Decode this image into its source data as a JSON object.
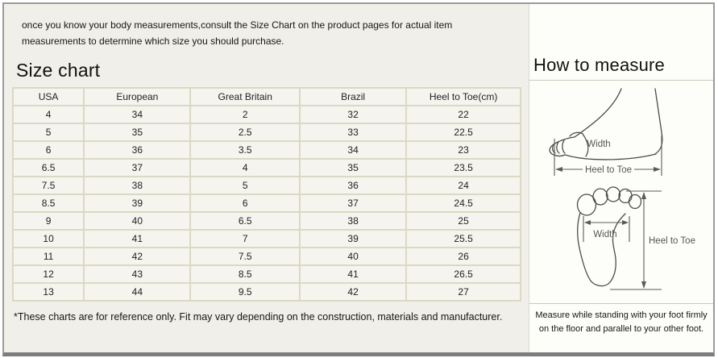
{
  "intro_text": "once you know your body measurements,consult the Size Chart on the product pages for actual item measurements to determine which size you should purchase.",
  "size_chart": {
    "title": "Size chart",
    "columns": [
      "USA",
      "European",
      "Great Britain",
      "Brazil",
      "Heel to Toe(cm)"
    ],
    "column_widths_percent": [
      14,
      21,
      21.5,
      21,
      22.5
    ],
    "rows": [
      [
        "4",
        "34",
        "2",
        "32",
        "22"
      ],
      [
        "5",
        "35",
        "2.5",
        "33",
        "22.5"
      ],
      [
        "6",
        "36",
        "3.5",
        "34",
        "23"
      ],
      [
        "6.5",
        "37",
        "4",
        "35",
        "23.5"
      ],
      [
        "7.5",
        "38",
        "5",
        "36",
        "24"
      ],
      [
        "8.5",
        "39",
        "6",
        "37",
        "24.5"
      ],
      [
        "9",
        "40",
        "6.5",
        "38",
        "25"
      ],
      [
        "10",
        "41",
        "7",
        "39",
        "25.5"
      ],
      [
        "11",
        "42",
        "7.5",
        "40",
        "26"
      ],
      [
        "12",
        "43",
        "8.5",
        "41",
        "26.5"
      ],
      [
        "13",
        "44",
        "9.5",
        "42",
        "27"
      ]
    ],
    "footnote": "*These charts are for reference only. Fit may vary depending on the construction, materials and manufacturer."
  },
  "how_to_measure": {
    "title": "How to measure",
    "instruction": "Measure while standing with your foot firmly on the floor and parallel to your other foot.",
    "side_view_labels": {
      "width": "Width",
      "heel_to_toe": "Heel to Toe"
    },
    "top_view_labels": {
      "width": "Width",
      "heel_to_toe": "Heel to Toe"
    }
  },
  "colors": {
    "left_background": "#f0efe9",
    "right_background": "#fdfdfa",
    "table_cell_background": "#f5f4ef",
    "table_border": "#dbd9c4",
    "frame_border": "#9a9a9a",
    "frame_border_bottom": "#7d7d7d",
    "separator_line": "#ccc9bb",
    "diagram_stroke": "#4c4c4c",
    "diagram_label": "#565656",
    "text": "#1c1c1c"
  }
}
